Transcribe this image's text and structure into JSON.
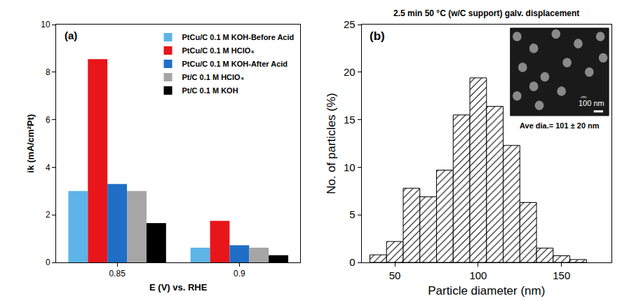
{
  "chart_data": [
    {
      "type": "bar",
      "panel": "(a)",
      "xlabel": "E (V) vs. RHE",
      "ylabel": "ik (mA/cm²Pt)",
      "categories": [
        "0.85",
        "0.9"
      ],
      "series": [
        {
          "name": "PtCu/C 0.1 M KOH-Before Acid",
          "color": "#5db4e6",
          "values": [
            3.0,
            0.62
          ]
        },
        {
          "name": "PtCu/C 0.1 M HClO₄",
          "color": "#e8161b",
          "values": [
            8.55,
            1.75
          ]
        },
        {
          "name": "PtCu/C 0.1 M KOH-After Acid",
          "color": "#1f6fc6",
          "values": [
            3.3,
            0.72
          ]
        },
        {
          "name": "Pt/C 0.1 M HClO₄",
          "color": "#a6a6a6",
          "values": [
            3.0,
            0.62
          ]
        },
        {
          "name": "Pt/C 0.1 M KOH",
          "color": "#000000",
          "values": [
            1.65,
            0.3
          ]
        }
      ],
      "ylim": [
        0,
        10
      ],
      "yticks": [
        0,
        2,
        4,
        6,
        8,
        10
      ],
      "grid": false,
      "legend": "top-right"
    },
    {
      "type": "histogram",
      "panel": "(b)",
      "title": "2.5 min 50 °C (w/C support) galv. displacement",
      "xlabel": "Particle diameter (nm)",
      "ylabel": "No. of particles (%)",
      "bins": [
        35,
        45,
        55,
        65,
        75,
        85,
        95,
        105,
        115,
        125,
        135,
        145,
        155,
        165
      ],
      "values": [
        0.8,
        2.2,
        7.8,
        6.9,
        9.7,
        15.5,
        19.4,
        16.4,
        12.3,
        6.3,
        1.5,
        0.7,
        0.3
      ],
      "color": "#ffffff",
      "xlim": [
        30,
        180
      ],
      "xticks": [
        50,
        100,
        150
      ],
      "ylim": [
        0,
        25
      ],
      "yticks": [
        0,
        5,
        10,
        15,
        20,
        25
      ],
      "grid": false,
      "inset": {
        "scale_label": "100 nm",
        "caption": "Ave dia.= 101 ± 20 nm"
      }
    }
  ]
}
